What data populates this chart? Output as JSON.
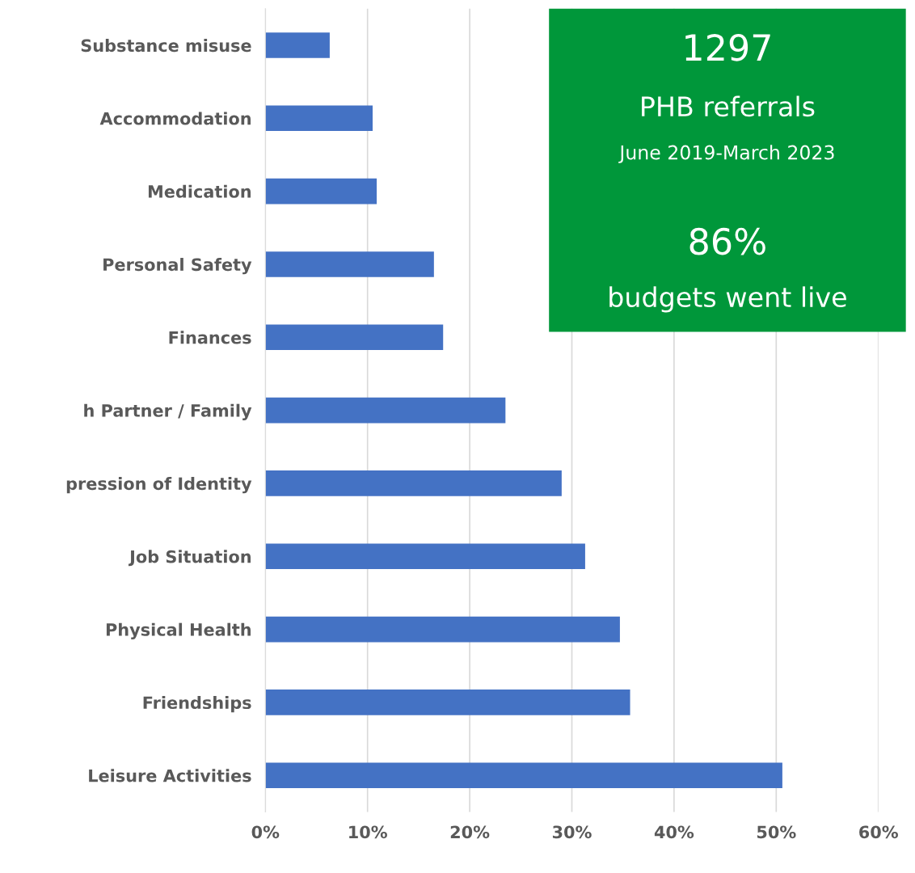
{
  "chart_data": [
    {
      "type": "bar",
      "orientation": "horizontal",
      "color": "#4472c4",
      "categories": [
        "Substance misuse",
        "Accommodation",
        "Medication",
        "Personal Safety",
        "Finances",
        "h Partner / Family",
        "pression of Identity",
        "Job Situation",
        "Physical Health",
        "Friendships",
        "Leisure Activities"
      ],
      "values": [
        6.3,
        10.5,
        10.9,
        16.5,
        17.4,
        23.5,
        29.0,
        31.3,
        34.7,
        35.7,
        50.6
      ],
      "xlim": [
        0,
        60
      ],
      "xticks": [
        {
          "value": 0,
          "label": "0%"
        },
        {
          "value": 10,
          "label": "10%"
        },
        {
          "value": 20,
          "label": "20%"
        },
        {
          "value": 30,
          "label": "30%"
        },
        {
          "value": 40,
          "label": "40%"
        },
        {
          "value": 50,
          "label": "50%"
        },
        {
          "value": 60,
          "label": "60%"
        }
      ],
      "grid": "x"
    },
    {
      "type": "other",
      "color": "#00973a",
      "annotations": [
        "1297",
        "PHB referrals",
        "June 2019-March 2023",
        "86%",
        "budgets went live"
      ]
    }
  ]
}
